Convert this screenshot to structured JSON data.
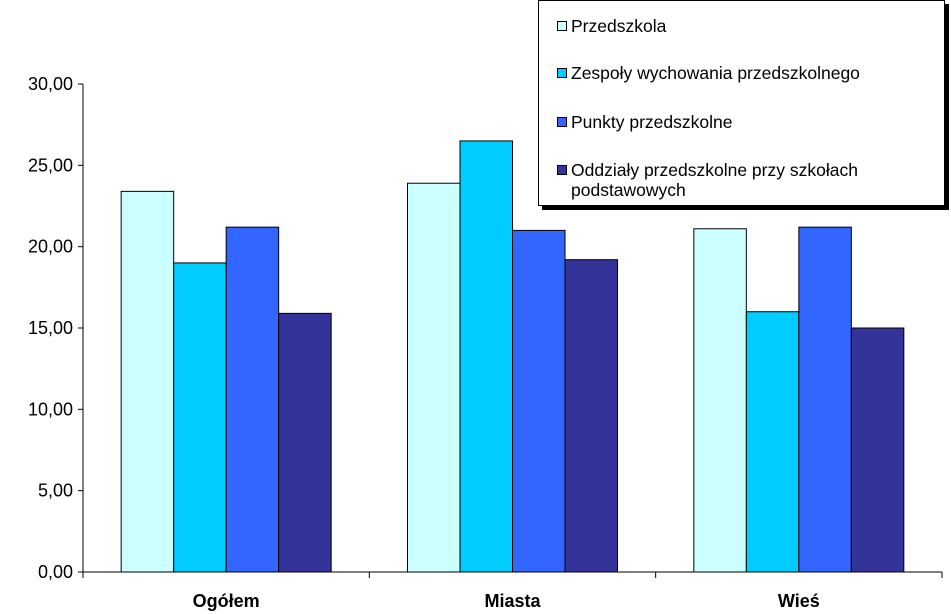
{
  "chart_data": {
    "type": "bar",
    "categories": [
      "Ogółem",
      "Miasta",
      "Wieś"
    ],
    "series": [
      {
        "name": "Przedszkola",
        "values": [
          23.4,
          23.9,
          21.1
        ],
        "color": "#ccffff"
      },
      {
        "name": "Zespoły wychowania przedszkolnego",
        "values": [
          19.0,
          26.5,
          16.0
        ],
        "color": "#00ccff"
      },
      {
        "name": "Punkty przedszkolne",
        "values": [
          21.2,
          21.0,
          21.2
        ],
        "color": "#3366ff"
      },
      {
        "name": "Oddziały przedszkolne przy szkołach podstawowych",
        "values": [
          15.9,
          19.2,
          15.0
        ],
        "color": "#333399"
      }
    ],
    "yticks": [
      "0,00",
      "5,00",
      "10,00",
      "15,00",
      "20,00",
      "25,00",
      "30,00"
    ],
    "ylim": [
      0,
      30
    ],
    "grid": false,
    "legend_position": "top-right"
  }
}
